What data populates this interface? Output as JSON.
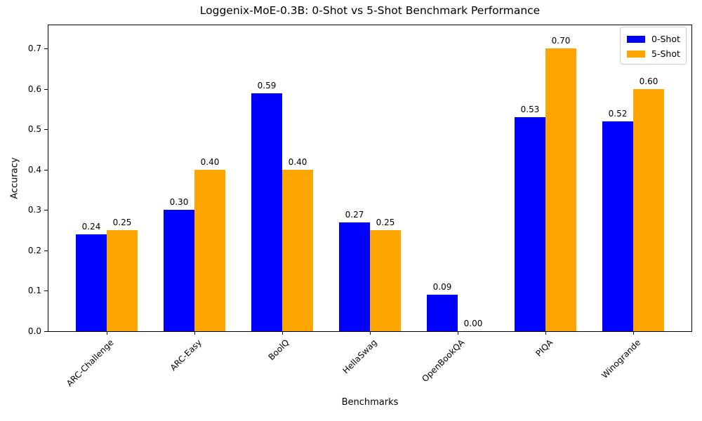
{
  "chart_data": {
    "type": "bar",
    "title": "Loggenix-MoE-0.3B: 0-Shot vs 5-Shot Benchmark Performance",
    "xlabel": "Benchmarks",
    "ylabel": "Accuracy",
    "categories": [
      "ARC-Challenge",
      "ARC-Easy",
      "BoolQ",
      "HellaSwag",
      "OpenBookQA",
      "PIQA",
      "Winogrande"
    ],
    "series": [
      {
        "name": "0-Shot",
        "color": "#0000ff",
        "values": [
          0.24,
          0.3,
          0.59,
          0.27,
          0.09,
          0.53,
          0.52
        ]
      },
      {
        "name": "5-Shot",
        "color": "#ffa500",
        "values": [
          0.25,
          0.4,
          0.4,
          0.25,
          0.0,
          0.7,
          0.6
        ]
      }
    ],
    "yticks": [
      0.0,
      0.1,
      0.2,
      0.3,
      0.4,
      0.5,
      0.6,
      0.7
    ],
    "ylim": [
      0,
      0.73
    ],
    "grid": false,
    "legend_position": "upper right",
    "bar_value_labels": true,
    "x_tick_rotation": 45,
    "value_label_decimals": 2,
    "ytick_decimals": 1
  }
}
